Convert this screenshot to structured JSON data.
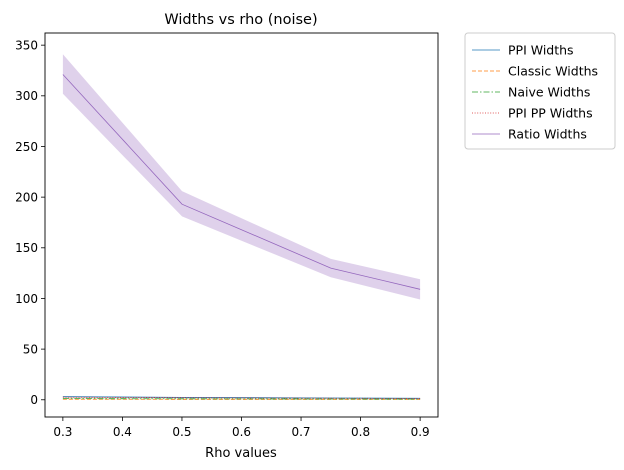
{
  "chart_data": {
    "type": "line",
    "title": "Widths vs rho (noise)",
    "xlabel": "Rho values",
    "ylabel": "",
    "xlim": [
      0.27,
      0.93
    ],
    "ylim": [
      -17,
      362
    ],
    "xticks": [
      0.3,
      0.4,
      0.5,
      0.6,
      0.7,
      0.8,
      0.9
    ],
    "yticks": [
      0,
      50,
      100,
      150,
      200,
      250,
      300,
      350
    ],
    "grid": false,
    "legend_position": "outside-top-right",
    "x": [
      0.3,
      0.5,
      0.75,
      0.9
    ],
    "series": [
      {
        "name": "PPI Widths",
        "values": [
          3.0,
          2.3,
          1.8,
          1.5
        ],
        "color": "#1f77b4",
        "dash": "solid",
        "band_low": [
          2.6,
          2.0,
          1.6,
          1.3
        ],
        "band_high": [
          3.4,
          2.6,
          2.0,
          1.7
        ]
      },
      {
        "name": "Classic Widths",
        "values": [
          0.6,
          0.5,
          0.4,
          0.4
        ],
        "color": "#ff7f0e",
        "dash": "dashed",
        "band_low": [
          0.5,
          0.4,
          0.3,
          0.3
        ],
        "band_high": [
          0.7,
          0.6,
          0.5,
          0.5
        ]
      },
      {
        "name": "Naive Widths",
        "values": [
          1.2,
          1.0,
          0.8,
          0.7
        ],
        "color": "#2ca02c",
        "dash": "dashdot",
        "band_low": [
          1.0,
          0.8,
          0.6,
          0.5
        ],
        "band_high": [
          1.4,
          1.2,
          1.0,
          0.9
        ]
      },
      {
        "name": "PPI PP Widths",
        "values": [
          2.5,
          2.0,
          1.6,
          1.3
        ],
        "color": "#d62728",
        "dash": "dotted",
        "band_low": [
          2.2,
          1.7,
          1.4,
          1.1
        ],
        "band_high": [
          2.8,
          2.3,
          1.8,
          1.5
        ]
      },
      {
        "name": "Ratio Widths",
        "values": [
          321,
          193,
          130,
          109
        ],
        "color": "#9467bd",
        "dash": "solid",
        "band_low": [
          302,
          181,
          121,
          99
        ],
        "band_high": [
          341,
          206,
          139,
          119
        ]
      }
    ]
  }
}
